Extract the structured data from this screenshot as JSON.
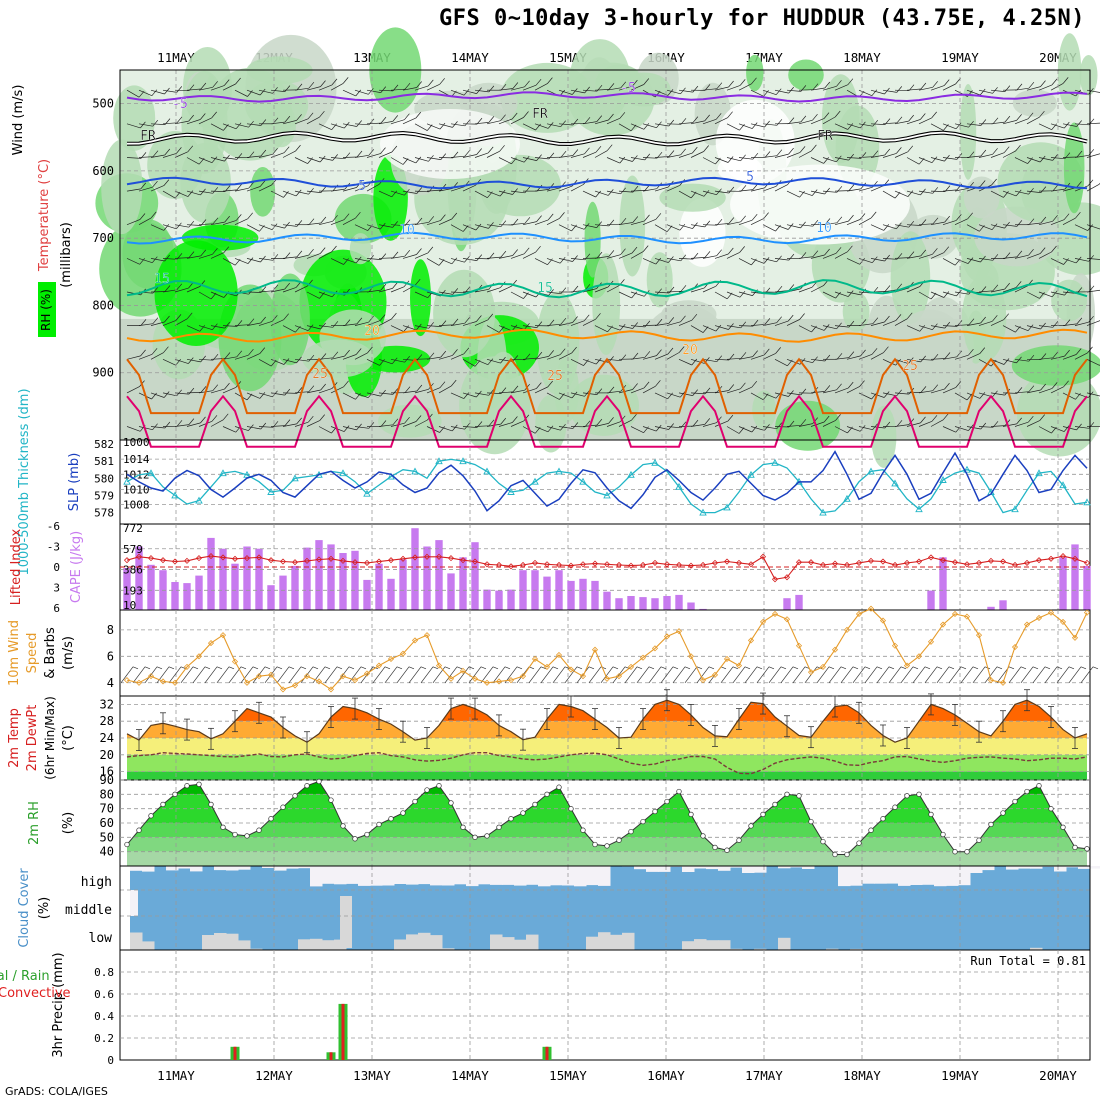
{
  "title": "GFS 0~10day 3-hourly for HUDDUR (43.75E, 4.25N)",
  "credit": "GrADS: COLA/IGES",
  "colors": {
    "rh_dark": "#00ee00",
    "rh_mid": "#73d873",
    "rh_light": "#b4dcb4",
    "rh_grey": "#c8d7c8",
    "rh_pale": "#e4f0e4",
    "iso_purple": "#8a2be2",
    "iso_blue": "#1f4fd8",
    "iso_lightblue": "#1e90ff",
    "iso_teal": "#00b98a",
    "iso_orange": "#ff8c00",
    "iso_darkorange": "#e06000",
    "iso_magenta": "#e0006e",
    "thick": "#21b5c6",
    "slp": "#1a3fbf",
    "cape": "#c77aef",
    "li": "#d62020",
    "wind": "#e69b2a",
    "temp_band1": "#ff6600",
    "temp_band2": "#ffaa33",
    "temp_band3": "#f5ef7a",
    "temp_band4": "#8fe65f",
    "temp_band5": "#2fcd3a",
    "cloud_blue": "#6aaad8",
    "cloud_grey": "#d8d8d8",
    "cloud_white": "#f4f2f7",
    "precip_green": "#30c030",
    "precip_red": "#e02020"
  },
  "date_labels": [
    "11MAY",
    "12MAY",
    "13MAY",
    "14MAY",
    "15MAY",
    "16MAY",
    "17MAY",
    "18MAY",
    "19MAY",
    "20MAY"
  ],
  "chart_data": [
    {
      "type": "heatmap",
      "panel": "profile",
      "ylabel_wind": "Wind (m/s)",
      "ylabel_temp": "Temperature (°C)",
      "ylabel_rh": "RH (%)",
      "ylabel_units": "(millibars)",
      "yticks": [
        "500",
        "600",
        "700",
        "800",
        "900"
      ],
      "ylim": [
        1000,
        450
      ],
      "isotherm_labels": [
        "-5",
        "-5",
        "FR",
        "FR",
        "FR",
        "5",
        "5",
        "10",
        "10",
        "15",
        "15",
        "20",
        "20",
        "25",
        "25",
        "25"
      ]
    },
    {
      "type": "line",
      "panel": "thickness_slp",
      "ylabel_left": "1000-500mb Thickness (dm)",
      "ylabel_right": "SLP (mb)",
      "left_ticks": [
        "582",
        "581",
        "580",
        "579",
        "578"
      ],
      "right_ticks": [
        "1014",
        "1012",
        "1010",
        "1008"
      ],
      "right_top": "1000",
      "ylim_left": [
        577.5,
        582
      ],
      "ylim_right": [
        1006,
        1016
      ],
      "series": [
        {
          "name": "Thickness",
          "values": [
            579.8,
            580.2,
            580.3,
            579.5,
            579,
            578.5,
            578.7,
            579.5,
            580.3,
            580.4,
            580.2,
            579.8,
            579.2,
            579.3,
            580,
            580.1,
            580.2,
            580.4,
            580.3,
            579.8,
            579.1,
            579.6,
            580.1,
            580.5,
            580.4,
            580,
            581,
            581.1,
            581,
            580.8,
            580.4,
            579.7,
            579.2,
            579.3,
            579.8,
            580.3,
            580.4,
            580.3,
            579.8,
            579.2,
            579.0,
            579.5,
            580.2,
            580.8,
            580.9,
            580.4,
            579.5,
            578.5,
            578,
            578,
            578.3,
            579.2,
            580.2,
            580.8,
            580.9,
            580.6,
            579.8,
            578.8,
            578,
            578.1,
            578.8,
            579.8,
            580.4,
            580.5,
            579.7,
            578.8,
            578.2,
            578.8,
            579.9,
            580.3,
            580.5,
            580.3,
            579.2,
            578,
            578.2,
            579.3,
            580.3,
            580.4,
            579.6,
            578.5,
            578.6
          ]
        },
        {
          "name": "SLP",
          "values": [
            1012,
            1011,
            1010.2,
            1009.8,
            1011.5,
            1012.5,
            1011.8,
            1010,
            1009,
            1010.2,
            1011.5,
            1012,
            1011.2,
            1009.6,
            1009,
            1010.5,
            1012,
            1012.4,
            1011.2,
            1010.2,
            1011,
            1012.3,
            1012,
            1010.6,
            1009.6,
            1010.2,
            1012.2,
            1013.2,
            1011.8,
            1009.8,
            1007.2,
            1008.5,
            1010.5,
            1011.2,
            1009.5,
            1007.8,
            1008.7,
            1010.8,
            1012.6,
            1012.2,
            1010.2,
            1008.5,
            1007.5,
            1009.3,
            1011.6,
            1012.6,
            1011.2,
            1009.6,
            1008.6,
            1010.2,
            1012,
            1012.4,
            1010.8,
            1009.2,
            1008.6,
            1009.5,
            1011,
            1011,
            1012.5,
            1015,
            1012,
            1008.7,
            1009.5,
            1012.2,
            1014.5,
            1012,
            1008.7,
            1009.5,
            1012.2,
            1014.8,
            1012,
            1008.5,
            1009.4,
            1012,
            1014.5,
            1012.5,
            1009.6,
            1010,
            1012.5,
            1014.5,
            1012.8
          ]
        }
      ]
    },
    {
      "type": "bar",
      "panel": "cape_li",
      "ylabel_left": "Lifted Index",
      "ylabel_right": "CAPE (J/kg)",
      "left_ticks": [
        "-3",
        "0",
        "3",
        "6"
      ],
      "right_ticks": [
        "772",
        "579",
        "386",
        "193",
        "10"
      ],
      "ylim_cape": [
        10,
        772
      ],
      "ylim_li": [
        6,
        -6
      ],
      "series": [
        {
          "name": "CAPE",
          "values": [
            400,
            600,
            430,
            380,
            270,
            260,
            330,
            680,
            580,
            440,
            600,
            580,
            240,
            330,
            420,
            590,
            660,
            620,
            540,
            560,
            290,
            440,
            300,
            480,
            770,
            600,
            660,
            350,
            500,
            640,
            200,
            190,
            200,
            380,
            380,
            320,
            380,
            280,
            300,
            280,
            180,
            120,
            140,
            130,
            120,
            140,
            150,
            80,
            20,
            10,
            10,
            10,
            10,
            10,
            10,
            120,
            150,
            10,
            10,
            10,
            10,
            10,
            10,
            10,
            10,
            10,
            10,
            190,
            500,
            10,
            10,
            10,
            40,
            100,
            10,
            10,
            10,
            10,
            500,
            620,
            420,
            10
          ]
        },
        {
          "name": "Lifted Index",
          "values": [
            -1,
            -1.5,
            -1.3,
            -1.0,
            -0.8,
            -0.9,
            -1.3,
            -1.6,
            -1.4,
            -1.2,
            -1.3,
            -1.4,
            -1.0,
            -0.8,
            -0.7,
            -0.9,
            -1.1,
            -1.2,
            -0.9,
            -0.7,
            -0.6,
            -0.8,
            -1.0,
            -1.2,
            -1.4,
            -1.5,
            -1.5,
            -1.3,
            -1.0,
            -0.8,
            -0.4,
            -0.3,
            -0.1,
            -0.3,
            -0.6,
            -0.4,
            -0.3,
            -0.2,
            -0.4,
            -0.5,
            -0.4,
            -0.3,
            -0.2,
            -0.3,
            -0.6,
            -0.4,
            -0.3,
            -0.2,
            -0.3,
            -0.6,
            -0.8,
            -0.6,
            -0.4,
            -1.5,
            1.8,
            1.5,
            -0.7,
            -0.7,
            -0.3,
            -0.5,
            -0.3,
            -0.6,
            -0.9,
            -0.8,
            -0.3,
            -0.6,
            -0.8,
            -1.4,
            -1.0,
            -0.7,
            -0.4,
            -0.6,
            -0.9,
            -0.8,
            -0.3,
            -0.6,
            -1.0,
            -1.2,
            -1.6,
            -1.2,
            -0.6
          ]
        }
      ]
    },
    {
      "type": "line",
      "panel": "wind10m",
      "ylabel": "10m Wind Speed (m/s) & Barbs",
      "ylabel_parts": [
        "10m Wind",
        "Speed",
        "(m/s)",
        "& Barbs"
      ],
      "yticks": [
        "8",
        "6",
        "4"
      ],
      "ylim": [
        3,
        9.5
      ],
      "series": [
        {
          "name": "Wind speed",
          "values": [
            4.2,
            4.0,
            4.5,
            4.1,
            4.0,
            5.2,
            6.0,
            7.0,
            7.6,
            5.6,
            4.0,
            4.5,
            4.6,
            3.5,
            3.8,
            4.5,
            4.1,
            3.5,
            4.5,
            4.2,
            4.7,
            5.3,
            5.8,
            6.2,
            7.2,
            7.6,
            5.3,
            4.3,
            4.9,
            4.3,
            4.0,
            4.1,
            4.2,
            4.5,
            5.8,
            5.2,
            6.1,
            5.0,
            4.5,
            6.5,
            4.3,
            4.5,
            5.2,
            5.9,
            6.6,
            7.5,
            7.9,
            6.0,
            4.2,
            4.6,
            5.8,
            5.3,
            7.2,
            8.6,
            9.2,
            8.8,
            6.8,
            4.8,
            5.2,
            6.5,
            8.0,
            9.2,
            9.6,
            8.7,
            6.8,
            5.3,
            6.0,
            7.1,
            8.4,
            9.2,
            9.0,
            7.6,
            4.2,
            4.0,
            6.7,
            8.4,
            8.9,
            9.3,
            8.6,
            7.4,
            9.3
          ]
        }
      ]
    },
    {
      "type": "area",
      "panel": "temp2m",
      "ylabel": "2m Temp 2m DewPt (6hr Min/Max) (°C)",
      "ylabel_parts": [
        "2m Temp",
        "2m DewPt",
        "(6hr Min/Max)",
        "(°C)"
      ],
      "yticks": [
        "32",
        "28",
        "24",
        "20",
        "16"
      ],
      "ylim": [
        14,
        34
      ],
      "series": [
        {
          "name": "Temperature",
          "values": [
            25,
            23.5,
            27,
            27.5,
            26.8,
            26,
            25.5,
            23.8,
            25,
            28,
            31,
            30,
            29,
            26.5,
            24.5,
            23,
            25,
            29,
            31.5,
            31,
            30,
            28.5,
            27.3,
            25.5,
            23.5,
            24,
            27,
            31,
            32,
            31,
            29.5,
            27,
            25.5,
            23.6,
            24.2,
            28.5,
            32,
            31.5,
            30.5,
            28.5,
            26.5,
            24,
            24.2,
            28.5,
            32,
            33,
            32,
            29.5,
            26.5,
            24.5,
            24.3,
            28.5,
            32.5,
            32.2,
            29,
            26.8,
            24.6,
            24.2,
            28,
            31.5,
            31.8,
            30,
            27,
            24.6,
            23,
            24,
            28,
            32,
            31,
            29.5,
            27.5,
            25.5,
            24.5,
            28,
            32,
            33,
            31.5,
            29,
            26,
            24,
            25
          ]
        },
        {
          "name": "Dew point",
          "values": [
            19.5,
            19.8,
            20,
            20.5,
            20.3,
            20.2,
            20,
            19.8,
            19.6,
            19.5,
            19.8,
            20.2,
            19.6,
            19.5,
            20,
            20.2,
            19.5,
            19,
            19.2,
            19.8,
            20.3,
            20.5,
            19.8,
            19.5,
            18.8,
            18.5,
            18.7,
            19.2,
            20,
            20.5,
            20.5,
            19.8,
            19.5,
            19,
            18.8,
            19,
            19.5,
            20,
            20.3,
            20.4,
            20,
            19,
            18,
            17.5,
            17.8,
            18.6,
            19,
            19.6,
            19.6,
            19,
            17,
            15.6,
            15.5,
            16.5,
            18,
            18.8,
            19.2,
            19.5,
            19.2,
            18.5,
            17.6,
            17.5,
            18.2,
            18.6,
            19.5,
            19.6,
            19,
            18.5,
            18.2,
            18.6,
            19.2,
            19.4,
            19.5,
            19.2,
            19,
            18.6,
            18.8,
            19.2,
            19.2,
            19,
            19.5
          ]
        }
      ]
    },
    {
      "type": "area",
      "panel": "rh2m",
      "ylabel": "2m RH (%)",
      "ylabel_parts": [
        "2m RH",
        "(%)"
      ],
      "yticks": [
        "90",
        "80",
        "70",
        "60",
        "50",
        "40"
      ],
      "ylim": [
        30,
        90
      ],
      "series": [
        {
          "name": "RH",
          "values": [
            45,
            55,
            65,
            73,
            80,
            86,
            87,
            73,
            57,
            52,
            51,
            55,
            63,
            71,
            79,
            86,
            89,
            76,
            58,
            49,
            52,
            59,
            63,
            67,
            75,
            83,
            86,
            74,
            57,
            50,
            51,
            57,
            63,
            67,
            73,
            80,
            85,
            70,
            55,
            45,
            44,
            48,
            54,
            61,
            68,
            75,
            82,
            66,
            51,
            43,
            41,
            48,
            58,
            66,
            73,
            80,
            79,
            61,
            47,
            38,
            38,
            46,
            55,
            63,
            71,
            79,
            80,
            66,
            52,
            40,
            40,
            48,
            59,
            67,
            75,
            82,
            86,
            70,
            57,
            43,
            42
          ]
        }
      ]
    },
    {
      "type": "heatmap",
      "panel": "cloud",
      "ylabel": "Cloud Cover (%)",
      "rows": [
        "high",
        "middle",
        "low"
      ]
    },
    {
      "type": "bar",
      "panel": "precip",
      "ylabel": "3hr Precip (mm)",
      "legend_total": "Total / Rain",
      "legend_conv": "Convective",
      "run_total": "Run Total = 0.81",
      "yticks": [
        "0.8",
        "0.6",
        "0.4",
        "0.2",
        "0"
      ],
      "ylim": [
        0,
        1.0
      ],
      "series": [
        {
          "name": "Total",
          "index": [
            9,
            17,
            18,
            35
          ],
          "values": [
            0.12,
            0.07,
            0.51,
            0.12
          ]
        }
      ]
    }
  ]
}
